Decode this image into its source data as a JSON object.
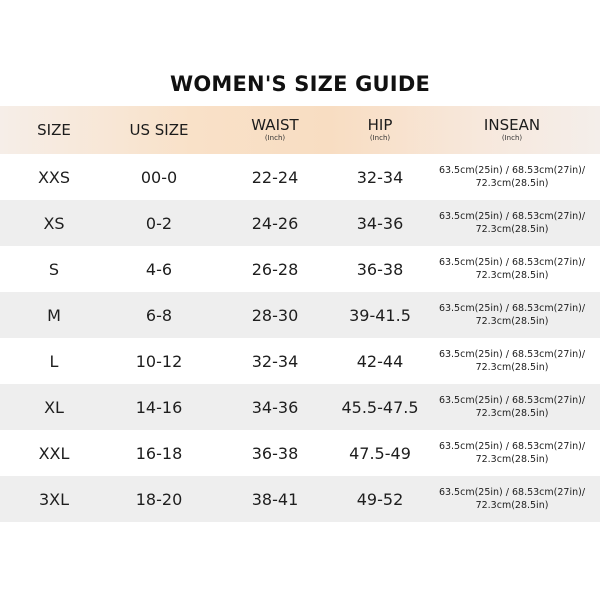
{
  "title": "WOMEN'S SIZE GUIDE",
  "headers": {
    "size": "SIZE",
    "us_size": "US SIZE",
    "waist": "WAIST",
    "waist_unit": "(Inch)",
    "hip": "HIP",
    "hip_unit": "(Inch)",
    "insean": "INSEAN",
    "insean_unit": "(Inch)"
  },
  "rows": [
    {
      "size": "XXS",
      "us_size": "00-0",
      "waist": "22-24",
      "hip": "32-34",
      "insean_line1": "63.5cm(25in) / 68.53cm(27in)/",
      "insean_line2": "72.3cm(28.5in)"
    },
    {
      "size": "XS",
      "us_size": "0-2",
      "waist": "24-26",
      "hip": "34-36",
      "insean_line1": "63.5cm(25in) / 68.53cm(27in)/",
      "insean_line2": "72.3cm(28.5in)"
    },
    {
      "size": "S",
      "us_size": "4-6",
      "waist": "26-28",
      "hip": "36-38",
      "insean_line1": "63.5cm(25in) / 68.53cm(27in)/",
      "insean_line2": "72.3cm(28.5in)"
    },
    {
      "size": "M",
      "us_size": "6-8",
      "waist": "28-30",
      "hip": "39-41.5",
      "insean_line1": "63.5cm(25in) / 68.53cm(27in)/",
      "insean_line2": "72.3cm(28.5in)"
    },
    {
      "size": "L",
      "us_size": "10-12",
      "waist": "32-34",
      "hip": "42-44",
      "insean_line1": "63.5cm(25in) / 68.53cm(27in)/",
      "insean_line2": "72.3cm(28.5in)"
    },
    {
      "size": "XL",
      "us_size": "14-16",
      "waist": "34-36",
      "hip": "45.5-47.5",
      "insean_line1": "63.5cm(25in) / 68.53cm(27in)/",
      "insean_line2": "72.3cm(28.5in)"
    },
    {
      "size": "XXL",
      "us_size": "16-18",
      "waist": "36-38",
      "hip": "47.5-49",
      "insean_line1": "63.5cm(25in) / 68.53cm(27in)/",
      "insean_line2": "72.3cm(28.5in)"
    },
    {
      "size": "3XL",
      "us_size": "18-20",
      "waist": "38-41",
      "hip": "49-52",
      "insean_line1": "63.5cm(25in) / 68.53cm(27in)/",
      "insean_line2": "72.3cm(28.5in)"
    }
  ]
}
